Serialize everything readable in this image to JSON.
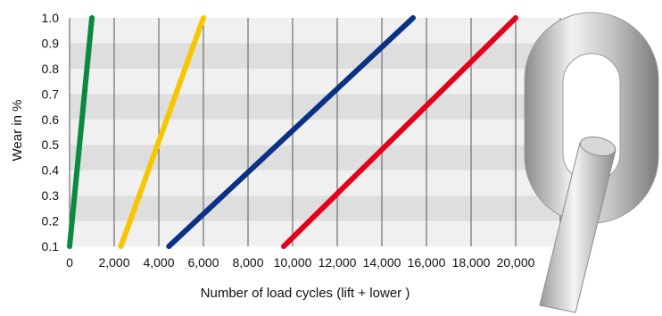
{
  "chart_data": {
    "type": "line",
    "xlabel": "Number of load cycles (lift + lower )",
    "ylabel": "Wear in %",
    "xlim": [
      0,
      22000
    ],
    "ylim": [
      0.1,
      1.0
    ],
    "x_ticks": [
      "0",
      "2,000",
      "4,000",
      "6,000",
      "8,000",
      "10,000",
      "12,000",
      "14,000",
      "16,000",
      "18,000",
      "20,000"
    ],
    "y_ticks": [
      "0.1",
      "0.2",
      "0.3",
      "0.4",
      "0.5",
      "0.6",
      "0.7",
      "0.8",
      "0.9",
      "1.0"
    ],
    "grid": "vertical lines with alternating horizontal bands",
    "series": [
      {
        "color": "#0a8a3c",
        "points": [
          [
            0,
            0.1
          ],
          [
            1000,
            1.0
          ]
        ]
      },
      {
        "color": "#f7c600",
        "points": [
          [
            2300,
            0.1
          ],
          [
            6000,
            1.0
          ]
        ]
      },
      {
        "color": "#0b3185",
        "points": [
          [
            4450,
            0.1
          ],
          [
            15400,
            1.0
          ]
        ]
      },
      {
        "color": "#e2001a",
        "points": [
          [
            9600,
            0.1
          ],
          [
            20000,
            1.0
          ]
        ]
      }
    ]
  },
  "decoration": {
    "name": "chain-link",
    "colors": {
      "light": "#f2f2f2",
      "mid": "#c4c4c4",
      "dark": "#8a8a8a"
    }
  }
}
